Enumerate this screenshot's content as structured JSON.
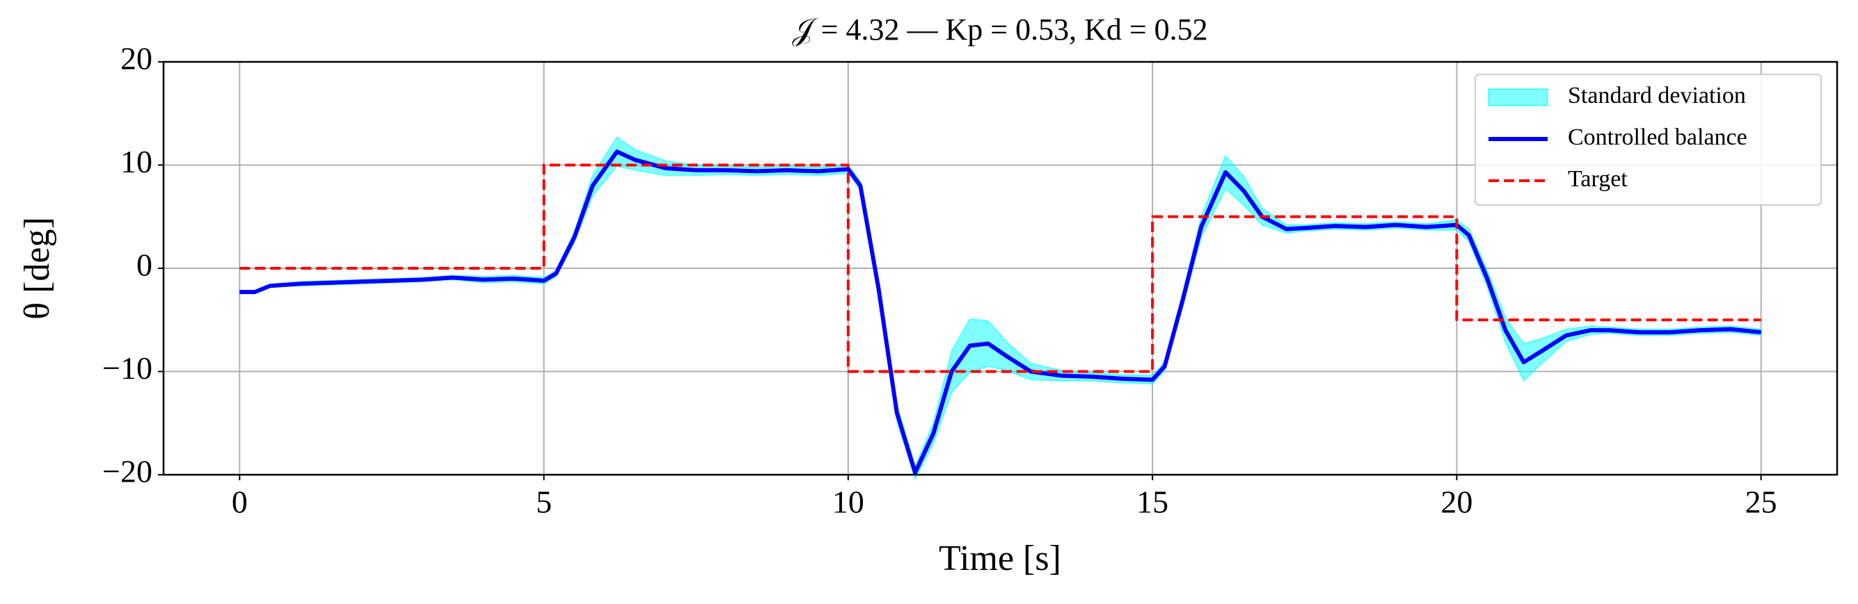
{
  "chart_data": {
    "type": "line",
    "title": "𝒥 = 4.32 — Kp = 0.53, Kd = 0.52",
    "xlabel": "Time [s]",
    "ylabel": "θ [deg]",
    "x": [
      0,
      0.25,
      0.5,
      1,
      1.5,
      2,
      2.5,
      3,
      3.5,
      4,
      4.5,
      5,
      5.2,
      5.5,
      5.8,
      6.2,
      6.5,
      7,
      7.5,
      8,
      8.5,
      9,
      9.5,
      10,
      10.2,
      10.5,
      10.8,
      11.1,
      11.4,
      11.7,
      12,
      12.3,
      12.6,
      13,
      13.5,
      14,
      14.5,
      15,
      15.2,
      15.5,
      15.8,
      16.2,
      16.5,
      16.8,
      17.2,
      17.5,
      18,
      18.5,
      19,
      19.5,
      20,
      20.2,
      20.5,
      20.8,
      21.1,
      21.4,
      21.8,
      22.2,
      22.5,
      23,
      23.5,
      24,
      24.5,
      25
    ],
    "series": [
      {
        "name": "Standard deviation",
        "color": "#00ffff",
        "band_of": 1,
        "values": [
          0.1,
          0.1,
          0.1,
          0.2,
          0.2,
          0.2,
          0.2,
          0.2,
          0.2,
          0.3,
          0.3,
          0.3,
          0.3,
          0.5,
          1.0,
          1.4,
          1.0,
          0.7,
          0.5,
          0.4,
          0.4,
          0.4,
          0.4,
          0.4,
          0.4,
          0.6,
          0.8,
          0.6,
          1.0,
          2.0,
          2.6,
          2.2,
          1.4,
          0.8,
          0.5,
          0.4,
          0.4,
          0.4,
          0.4,
          0.6,
          1.0,
          1.6,
          1.4,
          0.8,
          0.4,
          0.3,
          0.3,
          0.3,
          0.3,
          0.3,
          0.5,
          0.6,
          0.8,
          1.2,
          1.8,
          1.2,
          0.6,
          0.4,
          0.3,
          0.3,
          0.3,
          0.3,
          0.3,
          0.3
        ]
      },
      {
        "name": "Controlled balance",
        "color": "#0000ff",
        "values": [
          -2.3,
          -2.3,
          -1.7,
          -1.5,
          -1.4,
          -1.3,
          -1.2,
          -1.1,
          -0.9,
          -1.1,
          -1.0,
          -1.2,
          -0.5,
          3,
          8,
          11.3,
          10.5,
          9.7,
          9.5,
          9.5,
          9.4,
          9.5,
          9.4,
          9.6,
          8,
          -2,
          -14,
          -19.8,
          -16,
          -10,
          -7.5,
          -7.3,
          -8.5,
          -10,
          -10.4,
          -10.5,
          -10.7,
          -10.8,
          -9.5,
          -3,
          4,
          9.3,
          7.5,
          5,
          3.8,
          3.9,
          4.1,
          4,
          4.2,
          4,
          4.2,
          3.2,
          -1,
          -6,
          -9.1,
          -8,
          -6.5,
          -6,
          -6,
          -6.2,
          -6.2,
          -6,
          -5.9,
          -6.2
        ]
      },
      {
        "name": "Target",
        "color": "#ff0000",
        "dashed": true,
        "x": [
          0,
          5,
          5,
          10,
          10,
          15,
          15,
          20,
          20,
          25
        ],
        "values": [
          0,
          0,
          10,
          10,
          -10,
          -10,
          5,
          5,
          -5,
          -5
        ]
      }
    ],
    "xlim": [
      -1.25,
      26.25
    ],
    "ylim": [
      -20,
      20
    ],
    "xticks": [
      0,
      5,
      10,
      15,
      20,
      25
    ],
    "yticks": [
      {
        "value": -20,
        "label": "−20"
      },
      {
        "value": -10,
        "label": "−10"
      },
      0,
      10,
      20
    ],
    "grid": true,
    "legend": "upper right"
  }
}
